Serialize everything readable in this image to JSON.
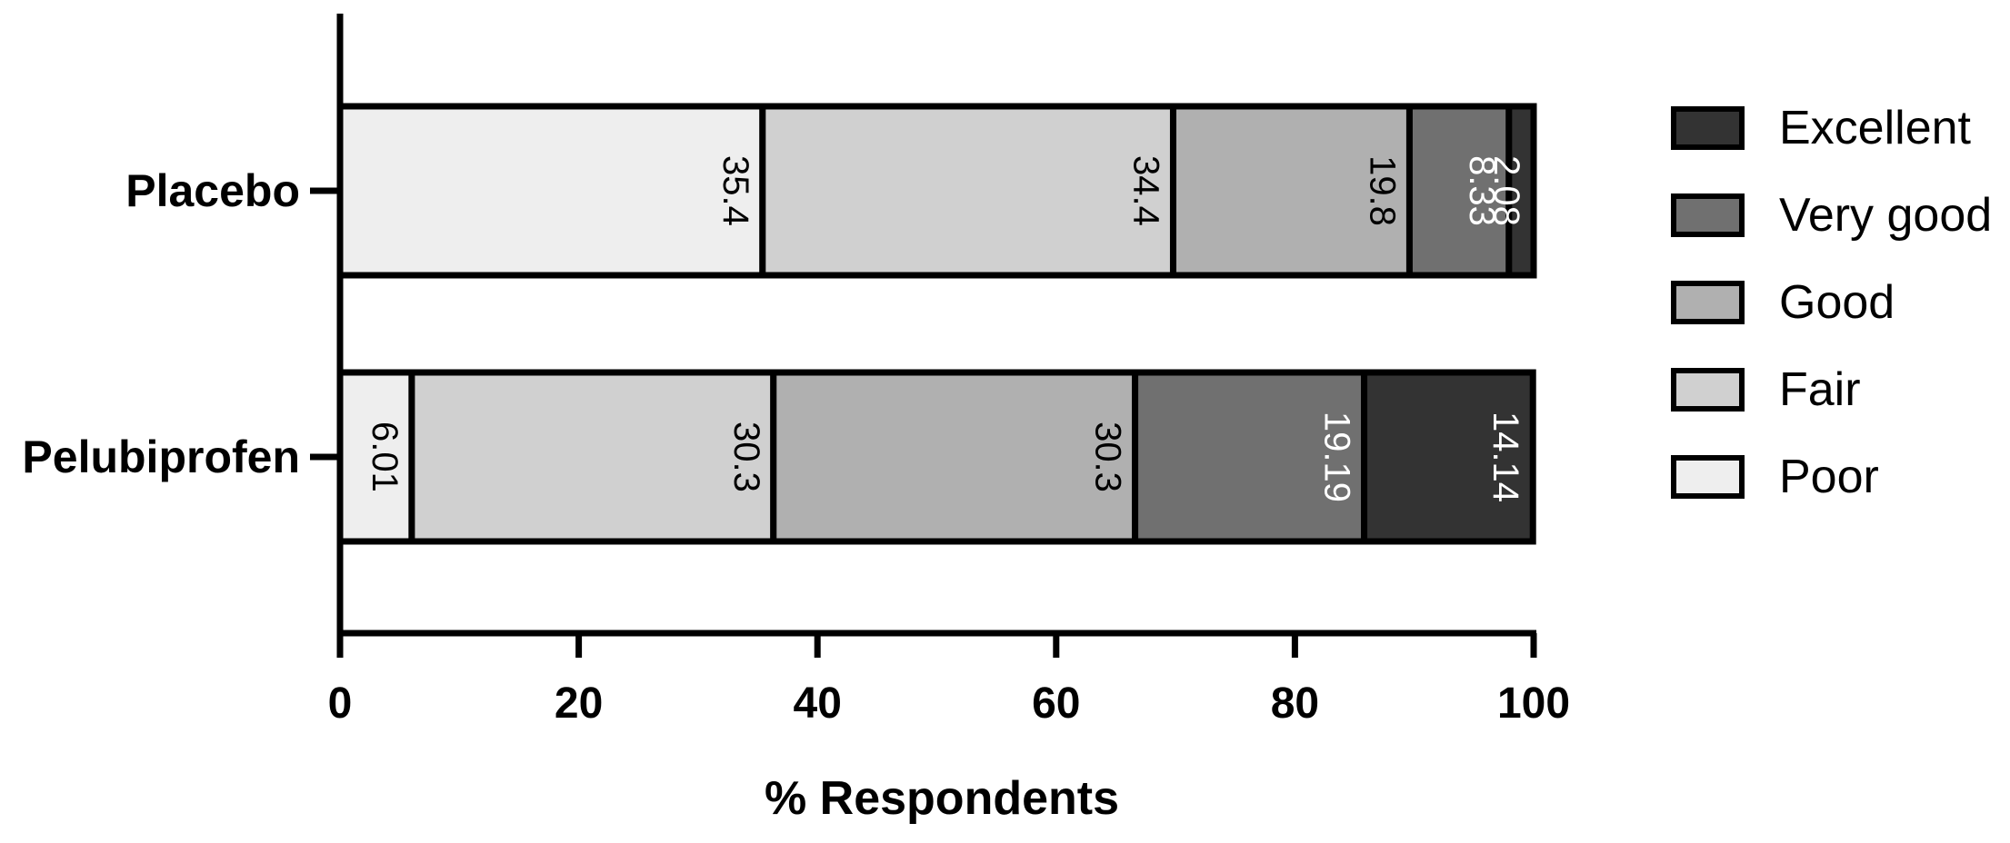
{
  "chart_data": {
    "type": "bar",
    "orientation": "horizontal",
    "stacked": true,
    "categories": [
      "Placebo",
      "Pelubiprofen"
    ],
    "series": [
      {
        "name": "Poor",
        "values": [
          35.4,
          6.01
        ],
        "labels": [
          "35.4",
          "6.01"
        ],
        "color": "#eeeeee",
        "label_color": "#000000"
      },
      {
        "name": "Fair",
        "values": [
          34.4,
          30.3
        ],
        "labels": [
          "34.4",
          "30.3"
        ],
        "color": "#d0d0d0",
        "label_color": "#000000"
      },
      {
        "name": "Good",
        "values": [
          19.8,
          30.3
        ],
        "labels": [
          "19.8",
          "30.3"
        ],
        "color": "#b0b0b0",
        "label_color": "#000000"
      },
      {
        "name": "Very good",
        "values": [
          8.33,
          19.19
        ],
        "labels": [
          "8.33",
          "19.19"
        ],
        "color": "#707070",
        "label_color": "#ffffff"
      },
      {
        "name": "Excellent",
        "values": [
          2.08,
          14.14
        ],
        "labels": [
          "2.08",
          "14.14"
        ],
        "color": "#333333",
        "label_color": "#ffffff"
      }
    ],
    "legend_order": [
      "Excellent",
      "Very good",
      "Good",
      "Fair",
      "Poor"
    ],
    "xlabel": "% Respondents",
    "ylabel": "",
    "xlim": [
      0,
      100
    ],
    "xticks": [
      0,
      20,
      40,
      60,
      80,
      100
    ],
    "grid": false,
    "legend_position": "right"
  }
}
